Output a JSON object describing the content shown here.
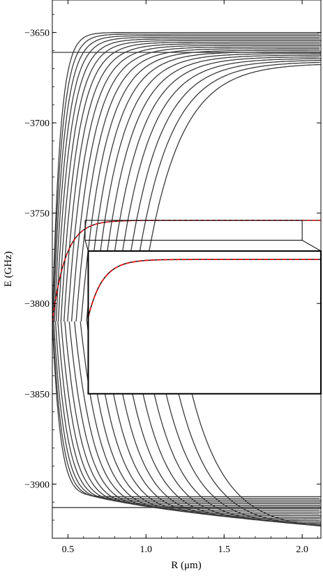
{
  "chart_data": {
    "type": "line",
    "xlabel": "R (μm)",
    "ylabel": "E (GHz)",
    "xlim": [
      0.4,
      2.12
    ],
    "ylim": [
      -3930,
      -3632
    ],
    "x_ticks": [
      0.5,
      1.0,
      1.5,
      2.0
    ],
    "x_tick_labels": [
      "0.5",
      "1.0",
      "1.5",
      "2.0"
    ],
    "y_ticks": [
      -3650,
      -3700,
      -3750,
      -3800,
      -3850,
      -3900
    ],
    "y_tick_labels": [
      "−3650",
      "−3700",
      "−3750",
      "−3800",
      "−3850",
      "−3900"
    ],
    "curve_color": "#3a3a3a",
    "highlight_color": "#e01010",
    "upper_manifold": {
      "asymptote_top": -3650,
      "asymptote_bottom": -3667,
      "n_curves": 20,
      "diverge_from": -3810,
      "diverge_R": [
        0.4,
        0.95
      ],
      "decay_length": [
        0.05,
        0.22
      ],
      "extra_curves": [
        {
          "E_inf": -3661,
          "flat": true
        }
      ]
    },
    "lower_manifold": {
      "asymptote_top": -3907,
      "asymptote_bottom": -3925,
      "n_curves": 20,
      "diverge_from": -3810,
      "diverge_R": [
        0.4,
        1.2
      ],
      "decay_length": [
        0.05,
        0.22
      ],
      "extra_curves": [
        {
          "E_inf": -3913,
          "flat": true
        }
      ]
    },
    "highlighted_curve": {
      "E_inf": -3754,
      "E_start": -3810,
      "R_start": 0.4,
      "decay_length": 0.085
    },
    "inset": {
      "source_box": {
        "x": [
          0.61,
          2.0
        ],
        "y": [
          -3754,
          -3765
        ]
      },
      "display_box": {
        "x": [
          0.63,
          2.12
        ],
        "y": [
          -3771,
          -3850
        ]
      }
    }
  }
}
